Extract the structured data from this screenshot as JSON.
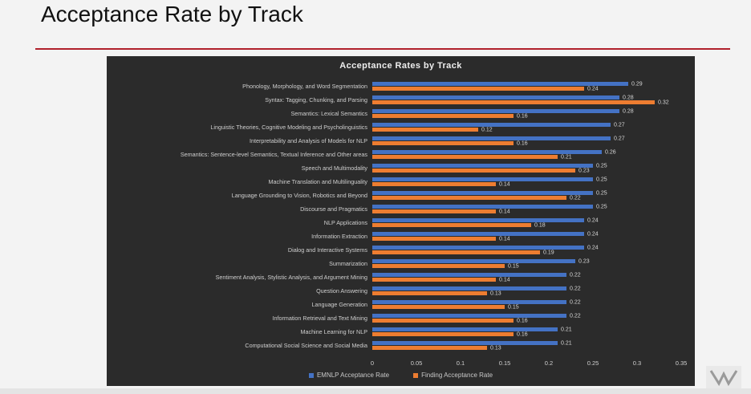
{
  "slide": {
    "title": "Acceptance Rate by Track"
  },
  "colors": {
    "emnlp": "#4472c4",
    "finding": "#ed7d31",
    "rule": "#b0202c",
    "chart_bg": "#2b2b2b"
  },
  "chart_data": {
    "type": "bar",
    "orientation": "horizontal",
    "title": "Acceptance Rates by Track",
    "xlim": [
      0,
      0.35
    ],
    "x_ticks": [
      "0",
      "0.05",
      "0.1",
      "0.15",
      "0.2",
      "0.25",
      "0.3",
      "0.35"
    ],
    "grid": false,
    "legend": "bottom",
    "categories": [
      "Phonology, Morphology, and Word Segmentation",
      "Syntax: Tagging, Chunking, and Parsing",
      "Semantics: Lexical Semantics",
      "Linguistic Theories, Cognitive Modeling and Psycholinguistics",
      "Interpretability and Analysis of Models for NLP",
      "Semantics: Sentence-level Semantics, Textual Inference and Other areas",
      "Speech and Multimodality",
      "Machine Translation and Multilinguality",
      "Language Grounding to Vision, Robotics and Beyond",
      "Discourse and Pragmatics",
      "NLP Applications",
      "Information Extraction",
      "Dialog and Interactive Systems",
      "Summarization",
      "Sentiment Analysis, Stylistic Analysis, and Argument Mining",
      "Question Answering",
      "Language Generation",
      "Information Retrieval and Text Mining",
      "Machine Learning for NLP",
      "Computational Social Science and Social Media"
    ],
    "series": [
      {
        "name": "EMNLP Acceptance Rate",
        "values": [
          0.29,
          0.28,
          0.28,
          0.27,
          0.27,
          0.26,
          0.25,
          0.25,
          0.25,
          0.25,
          0.24,
          0.24,
          0.24,
          0.23,
          0.22,
          0.22,
          0.22,
          0.22,
          0.21,
          0.21
        ],
        "labels": [
          "0.29",
          "0.28",
          "0.28",
          "0.27",
          "0.27",
          "0.26",
          "0.25",
          "0.25",
          "0.25",
          "0.25",
          "0.24",
          "0.24",
          "0.24",
          "0.23",
          "0.22",
          "0.22",
          "0.22",
          "0.22",
          "0.21",
          "0.21"
        ]
      },
      {
        "name": "Finding Acceptance Rate",
        "values": [
          0.24,
          0.32,
          0.16,
          0.12,
          0.16,
          0.21,
          0.23,
          0.14,
          0.22,
          0.14,
          0.18,
          0.14,
          0.19,
          0.15,
          0.14,
          0.13,
          0.15,
          0.16,
          0.16,
          0.13
        ],
        "labels": [
          "0.24",
          "0.32",
          "0.16",
          "0.12",
          "0.16",
          "0.21",
          "0.23",
          "0.14",
          "0.22",
          "0.14",
          "0.18",
          "0.14",
          "0.19",
          "0.15",
          "0.14",
          "0.13",
          "0.15",
          "0.16",
          "0.16",
          "0.13"
        ]
      }
    ]
  }
}
